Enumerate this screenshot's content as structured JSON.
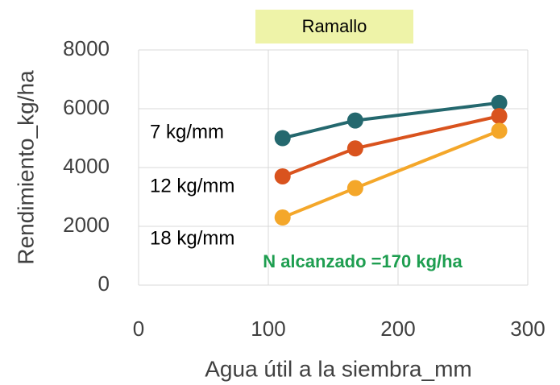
{
  "chart_data": {
    "type": "line",
    "title": "Ramallo",
    "x_label": "Agua útil a la siembra_mm",
    "y_label": "Rendimiento_kg/ha",
    "annotation": "N alcanzado =170 kg/ha",
    "annotation_color": "#1e9e50",
    "x": [
      111,
      167,
      278
    ],
    "series": [
      {
        "name": "7 kg/mm",
        "color": "#24686e",
        "values": [
          5000,
          5600,
          6200
        ]
      },
      {
        "name": "12 kg/mm",
        "color": "#d9531e",
        "values": [
          3700,
          4650,
          5750
        ]
      },
      {
        "name": "18 kg/mm",
        "color": "#f4a72a",
        "values": [
          2300,
          3300,
          5250
        ]
      }
    ],
    "xlim": [
      0,
      300
    ],
    "xticks": [
      0,
      100,
      200,
      300
    ],
    "ylim": [
      0,
      8000
    ],
    "yticks": [
      0,
      2000,
      4000,
      6000,
      8000
    ],
    "grid": true
  }
}
